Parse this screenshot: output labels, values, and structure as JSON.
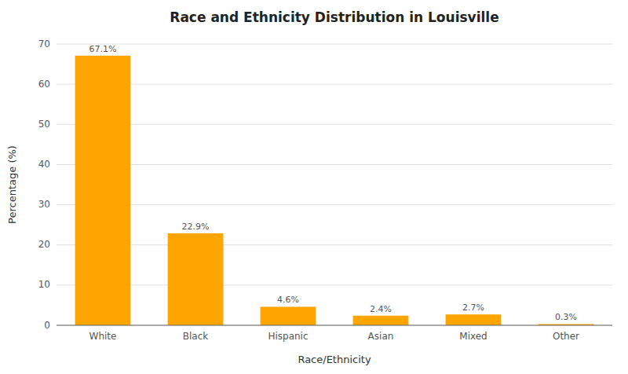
{
  "chart_data": {
    "type": "bar",
    "title": "Race and Ethnicity Distribution in Louisville",
    "xlabel": "Race/Ethnicity",
    "ylabel": "Percentage (%)",
    "categories": [
      "White",
      "Black",
      "Hispanic",
      "Asian",
      "Mixed",
      "Other"
    ],
    "values": [
      67.1,
      22.9,
      4.6,
      2.4,
      2.7,
      0.3
    ],
    "value_labels": [
      "67.1%",
      "22.9%",
      "4.6%",
      "2.4%",
      "2.7%",
      "0.3%"
    ],
    "data_labels": true,
    "color": "#FFA500",
    "ylim": [
      0,
      70
    ],
    "yticks": [
      0,
      10,
      20,
      30,
      40,
      50,
      60,
      70
    ],
    "grid": true
  }
}
